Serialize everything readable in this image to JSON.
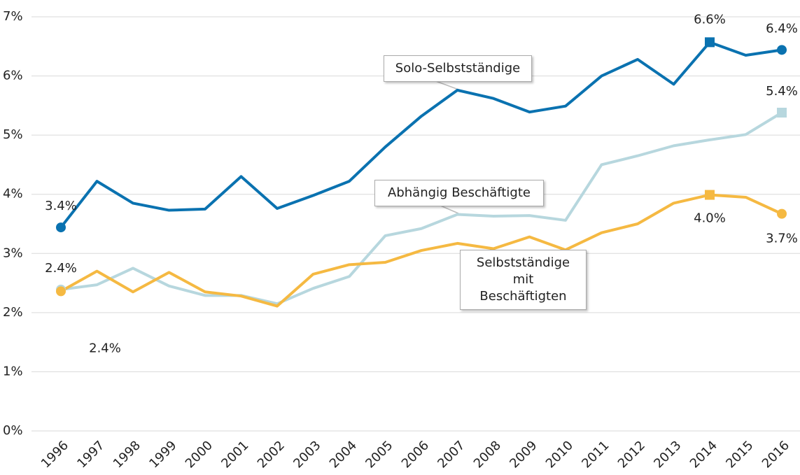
{
  "chart_data": {
    "type": "line",
    "categories": [
      "1996",
      "1997",
      "1998",
      "1999",
      "2000",
      "2001",
      "2002",
      "2003",
      "2004",
      "2005",
      "2006",
      "2007",
      "2008",
      "2009",
      "2010",
      "2011",
      "2012",
      "2013",
      "2014",
      "2015",
      "2016"
    ],
    "ylim": [
      0,
      7
    ],
    "yticks": [
      {
        "value": 0,
        "label": "0%"
      },
      {
        "value": 1,
        "label": "1%"
      },
      {
        "value": 2,
        "label": "2%"
      },
      {
        "value": 3,
        "label": "3%"
      },
      {
        "value": 4,
        "label": "4%"
      },
      {
        "value": 5,
        "label": "5%"
      },
      {
        "value": 6,
        "label": "6%"
      },
      {
        "value": 7,
        "label": "7%"
      }
    ],
    "grid": true,
    "series": [
      {
        "name": "Solo-Selbstständige",
        "color": "#0a72b0",
        "values": [
          3.44,
          4.22,
          3.85,
          3.73,
          3.75,
          4.3,
          3.76,
          3.98,
          4.22,
          4.8,
          5.32,
          5.76,
          5.62,
          5.39,
          5.49,
          6.0,
          6.28,
          5.86,
          6.57,
          6.35,
          6.44
        ],
        "value_labels": [
          "3.4%",
          null,
          null,
          null,
          null,
          null,
          null,
          null,
          null,
          null,
          null,
          null,
          null,
          null,
          null,
          null,
          null,
          null,
          "6.6%",
          null,
          "6.4%"
        ]
      },
      {
        "name": "Abhängig Beschäftigte",
        "color": "#b7d7de",
        "values": [
          2.39,
          2.47,
          2.75,
          2.45,
          2.29,
          2.29,
          2.15,
          2.41,
          2.61,
          3.3,
          3.42,
          3.66,
          3.63,
          3.64,
          3.56,
          4.5,
          4.65,
          4.82,
          4.92,
          5.01,
          5.38
        ],
        "value_labels": [
          "2.4%",
          null,
          null,
          null,
          null,
          null,
          null,
          null,
          null,
          null,
          null,
          null,
          null,
          null,
          null,
          null,
          null,
          null,
          null,
          null,
          "5.4%"
        ]
      },
      {
        "name": "Selbstständige mit Beschäftigten",
        "color": "#f5b942",
        "values": [
          2.36,
          2.7,
          2.35,
          2.68,
          2.35,
          2.28,
          2.11,
          2.65,
          2.81,
          2.85,
          3.05,
          3.17,
          3.08,
          3.28,
          3.06,
          3.35,
          3.5,
          3.85,
          3.99,
          3.95,
          3.67
        ],
        "value_labels": [
          "2.4%",
          null,
          null,
          null,
          null,
          null,
          null,
          null,
          null,
          null,
          null,
          null,
          null,
          null,
          null,
          null,
          null,
          null,
          "4.0%",
          null,
          "3.7%"
        ]
      }
    ]
  }
}
